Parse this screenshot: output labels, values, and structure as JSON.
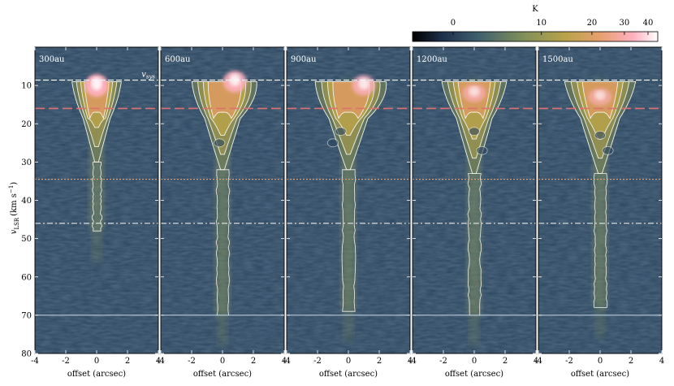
{
  "chart_data": {
    "type": "heatmap",
    "description_units": "position-velocity diagrams; brightness temperature K",
    "colorbar": {
      "label": "K",
      "ticks": [
        "0",
        "10",
        "20",
        "30",
        "40"
      ],
      "scale": "asinh-like",
      "tick_values": [
        0,
        10,
        20,
        30,
        40
      ],
      "range": [
        -4,
        45
      ],
      "colors": [
        "#000000",
        "#1d2f4a",
        "#3f5f6e",
        "#7f8f5a",
        "#b8a24a",
        "#e8a070",
        "#ffb0c0",
        "#ffffff"
      ]
    },
    "shared_axes": {
      "xlabel": "offset (arcsec)",
      "ylabel_main": "v",
      "ylabel_sub": "LSR",
      "ylabel_unit": "(km s",
      "ylabel_sup": "−1",
      "ylabel_close": ")",
      "xlim": [
        -4,
        4
      ],
      "ylim": [
        80,
        0
      ],
      "xticks": [
        "-4",
        "-2",
        "0",
        "2",
        "4"
      ],
      "xtick_values": [
        -4,
        -2,
        0,
        2,
        4
      ],
      "yticks": [
        "10",
        "20",
        "30",
        "40",
        "50",
        "60",
        "70",
        "80"
      ],
      "ytick_values": [
        10,
        20,
        30,
        40,
        50,
        60,
        70,
        80
      ]
    },
    "reference_lines": [
      {
        "kind": "vsys",
        "label": "v",
        "label_sub": "sys",
        "y": 8.6,
        "style": "dashed",
        "color": "#ffffff"
      },
      {
        "kind": "red-dashed",
        "y": 16,
        "style": "long-dash",
        "color": "#e07070"
      },
      {
        "kind": "orange-dotted",
        "y": 34.5,
        "style": "dotted",
        "color": "#e8a070"
      },
      {
        "kind": "dash-dot",
        "y": 46,
        "style": "dash-dot",
        "color": "#e8e8e8"
      },
      {
        "kind": "solid",
        "y": 70,
        "style": "solid",
        "color": "#c8d8e8"
      }
    ],
    "panels": [
      {
        "label": "300au",
        "jet_extent_v": 48,
        "peak_K": 45,
        "peak_offset": 0.0,
        "peak_v": 10,
        "wide_top_halfwidth": 1.6,
        "outflow_knots": []
      },
      {
        "label": "600au",
        "jet_extent_v": 70,
        "peak_K": 42,
        "peak_offset": 0.8,
        "peak_v": 9,
        "wide_top_halfwidth": 2.1,
        "outflow_knots": [
          {
            "v": 25,
            "offset": -0.2
          }
        ]
      },
      {
        "label": "900au",
        "jet_extent_v": 69,
        "peak_K": 38,
        "peak_offset": 1.0,
        "peak_v": 10,
        "wide_top_halfwidth": 2.3,
        "outflow_knots": [
          {
            "v": 22,
            "offset": -0.5
          },
          {
            "v": 25,
            "offset": -1.0
          }
        ]
      },
      {
        "label": "1200au",
        "jet_extent_v": 70,
        "peak_K": 32,
        "peak_offset": 0.0,
        "peak_v": 12,
        "wide_top_halfwidth": 2.1,
        "outflow_knots": [
          {
            "v": 22,
            "offset": 0.0
          },
          {
            "v": 27,
            "offset": 0.5
          }
        ]
      },
      {
        "label": "1500au",
        "jet_extent_v": 68,
        "peak_K": 30,
        "peak_offset": 0.0,
        "peak_v": 13,
        "wide_top_halfwidth": 2.3,
        "outflow_knots": [
          {
            "v": 23,
            "offset": 0.0
          },
          {
            "v": 27,
            "offset": 0.5
          }
        ]
      }
    ]
  }
}
